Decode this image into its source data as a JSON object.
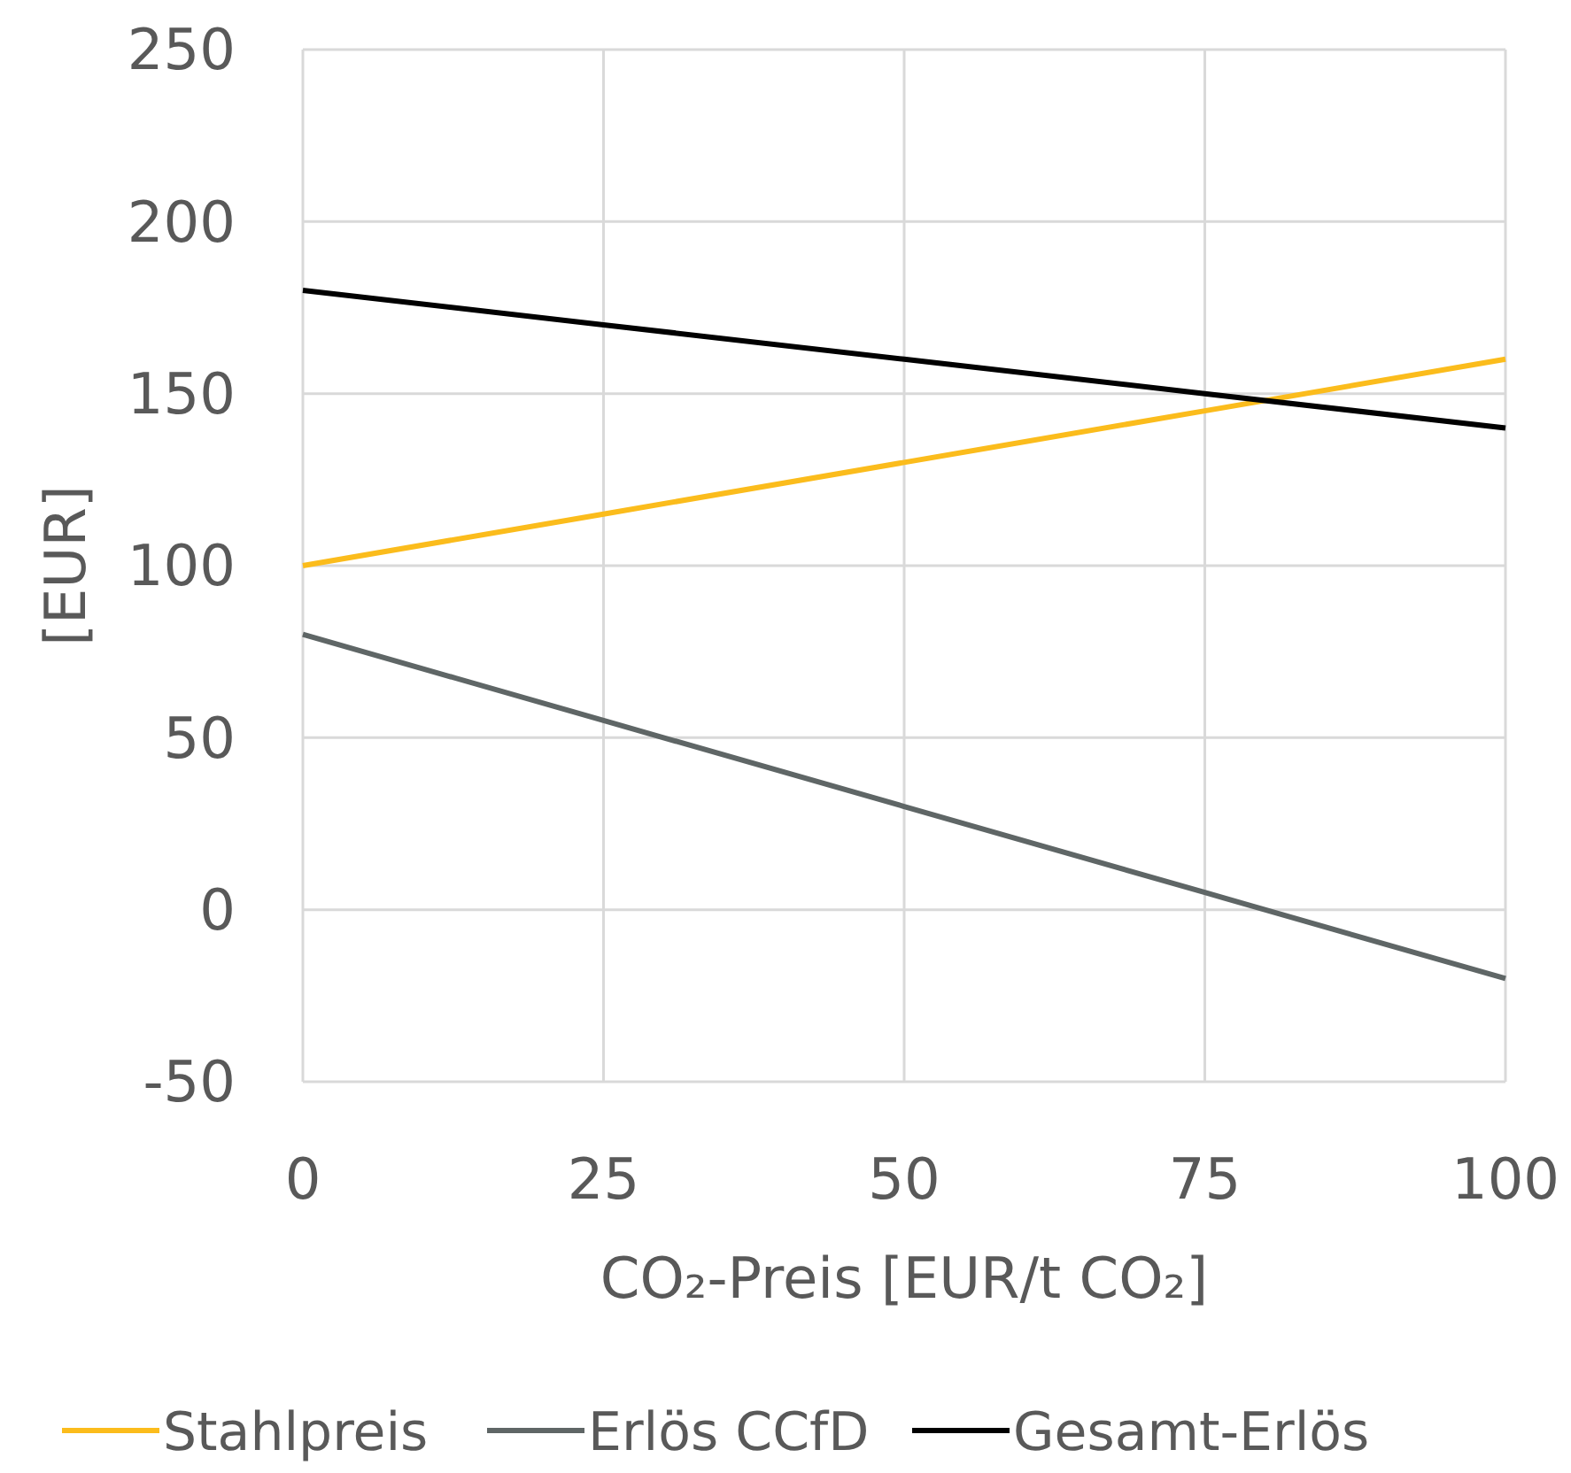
{
  "chart_data": {
    "type": "line",
    "xlabel": "CO₂-Preis [EUR/t CO₂]",
    "ylabel": "[EUR]",
    "x": [
      0,
      25,
      50,
      75,
      100
    ],
    "series": [
      {
        "name": "Stahlpreis",
        "color": "#fbbc1c",
        "values": [
          100,
          115,
          130,
          145,
          160
        ]
      },
      {
        "name": "Erlös CCfD",
        "color": "#5f6666",
        "values": [
          80,
          55,
          30,
          5,
          -20
        ]
      },
      {
        "name": "Gesamt-Erlös",
        "color": "#000000",
        "values": [
          180,
          170,
          160,
          150,
          140
        ]
      }
    ],
    "xlim": [
      0,
      100
    ],
    "xticks": [
      0,
      25,
      50,
      75,
      100
    ],
    "ylim": [
      -50,
      250
    ],
    "yticks": [
      -50,
      0,
      50,
      100,
      150,
      200,
      250
    ],
    "grid": true,
    "legend": "bottom",
    "marker": "none",
    "line_style": "solid"
  }
}
